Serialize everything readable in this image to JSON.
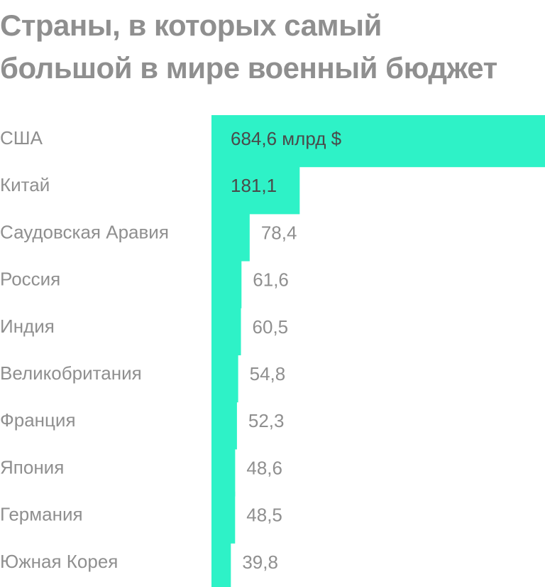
{
  "title": [
    "Страны, в которых самый",
    "большой в мире военный бюджет"
  ],
  "colors": {
    "bar": "#2ef2c7",
    "text_gray": "#8f8f8f",
    "text_dark": "#4a4a4a"
  },
  "chart_data": {
    "type": "bar",
    "orientation": "horizontal",
    "title": "Страны, в которых самый большой в мире военный бюджет",
    "unit": "млрд $",
    "categories": [
      "США",
      "Китай",
      "Саудовская Аравия",
      "Россия",
      "Индия",
      "Великобритания",
      "Франция",
      "Япония",
      "Германия",
      "Южная Корея"
    ],
    "values": [
      684.6,
      181.1,
      78.4,
      61.6,
      60.5,
      54.8,
      52.3,
      48.6,
      48.5,
      39.8
    ],
    "value_labels": [
      "684,6 млрд $",
      "181,1",
      "78,4",
      "61,6",
      "60,5",
      "54,8",
      "52,3",
      "48,6",
      "48,5",
      "39,8"
    ],
    "grid": false,
    "legend": "none"
  }
}
